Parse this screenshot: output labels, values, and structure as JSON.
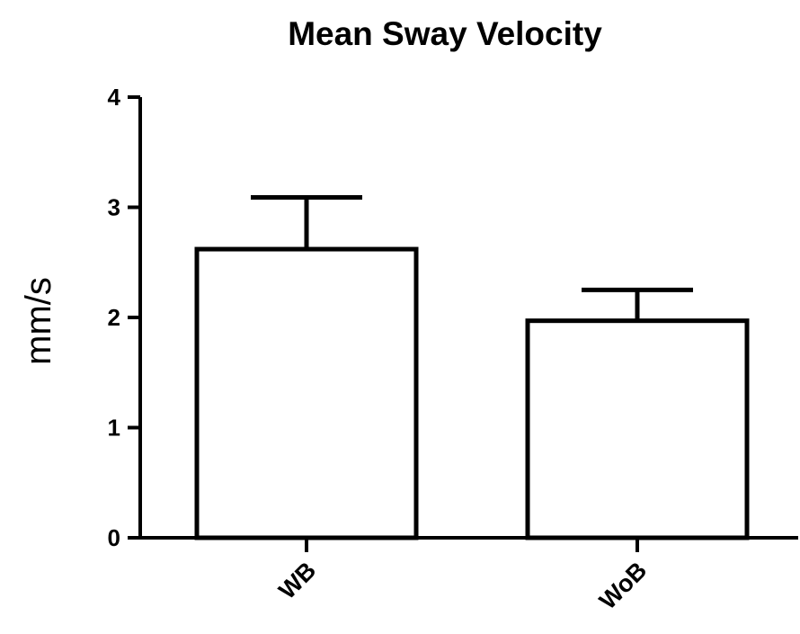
{
  "chart_data": {
    "type": "bar",
    "title": "Mean Sway Velocity",
    "xlabel": "",
    "ylabel": "mm/s",
    "categories": [
      "WB",
      "WoB"
    ],
    "values": [
      2.62,
      1.97
    ],
    "error_upper": [
      3.09,
      2.25
    ],
    "ylim": [
      0,
      4
    ],
    "yticks": [
      0,
      1,
      2,
      3,
      4
    ],
    "grid": false,
    "bar_color": "#ffffff",
    "edge_color": "#000000"
  }
}
